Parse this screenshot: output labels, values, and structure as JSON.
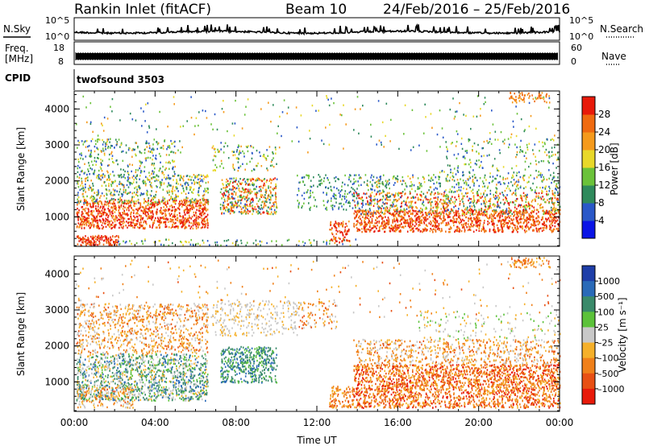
{
  "header": {
    "station": "Rankin Inlet (fitACF)",
    "beam": "Beam 10",
    "dates": "24/Feb/2016 – 25/Feb/2016"
  },
  "noise_panel": {
    "left_label": "N.Sky",
    "right_label": "N.Search",
    "left_ticks": [
      "10^5",
      "10^0"
    ],
    "right_ticks": [
      "10^5",
      "10^0"
    ]
  },
  "freq_panel": {
    "left_label_top": "Freq.",
    "left_label_bottom": "[MHz]",
    "right_label": "Nave",
    "left_ticks": [
      "18",
      "8"
    ],
    "right_ticks": [
      "60",
      "0"
    ]
  },
  "cpid": {
    "label": "CPID",
    "mode": "twofsound 3503"
  },
  "chart_data": [
    {
      "type": "heatmap",
      "parameter": "power",
      "ylabel": "Slant Range [km]",
      "y_ticks": [
        1000,
        2000,
        3000,
        4000
      ],
      "ylim": [
        180,
        4500
      ],
      "colorbar_label": "Power [dB]",
      "colorbar_ticks": [
        "4",
        "8",
        "12",
        "16",
        "20",
        "24",
        "28"
      ],
      "colorbar_colors": [
        "#0a14e6",
        "#2a58c8",
        "#2f8a5c",
        "#6bc23a",
        "#e8d82a",
        "#f59a1c",
        "#ef6a10",
        "#e81a0a"
      ]
    },
    {
      "type": "heatmap",
      "parameter": "velocity",
      "ylabel": "Slant Range [km]",
      "y_ticks": [
        1000,
        2000,
        3000,
        4000
      ],
      "ylim": [
        180,
        4500
      ],
      "xlabel": "Time UT",
      "x_ticks": [
        "00:00",
        "04:00",
        "08:00",
        "12:00",
        "16:00",
        "20:00",
        "00:00"
      ],
      "colorbar_label": "Velocity [m s⁻¹]",
      "colorbar_ticks": [
        "1000",
        "500",
        "100",
        "25",
        "–25",
        "–100",
        "–500",
        "–1000"
      ],
      "colorbar_colors": [
        "#1e3ea8",
        "#2a6ab8",
        "#3a8a6a",
        "#5cc23a",
        "#c8c8c8",
        "#f5b02a",
        "#f0801a",
        "#e85014",
        "#e81a0a"
      ]
    }
  ]
}
